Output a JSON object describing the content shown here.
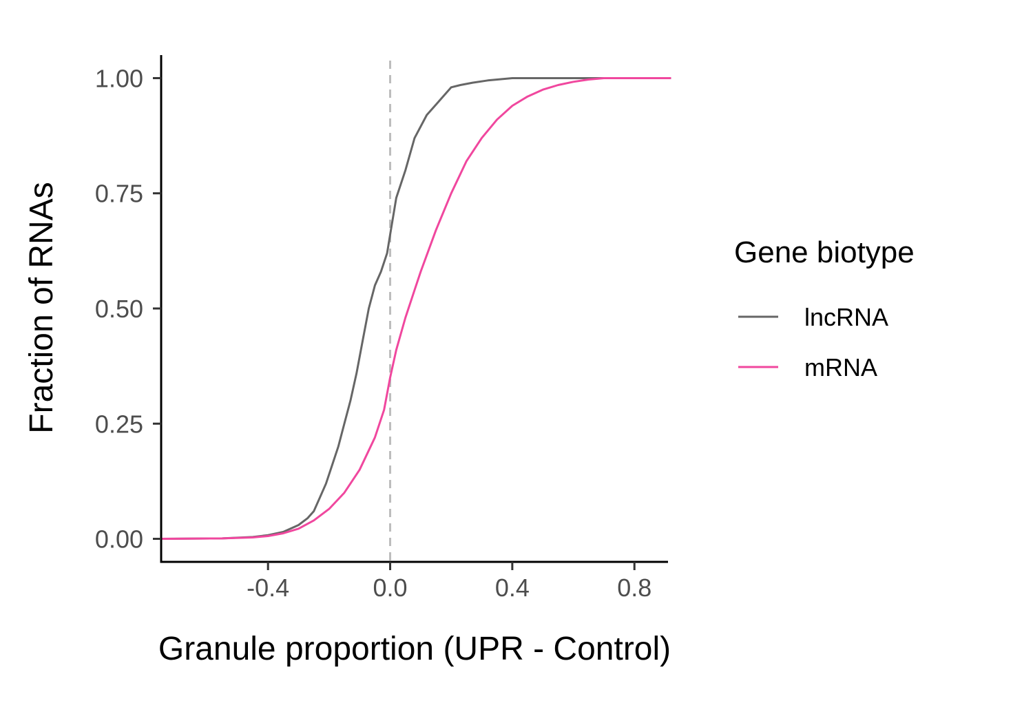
{
  "chart_data": {
    "type": "line",
    "subtype": "ecdf",
    "xlabel": "Granule proportion (UPR - Control)",
    "ylabel": "Fraction of RNAs",
    "xlim": [
      -0.75,
      0.91
    ],
    "ylim": [
      -0.05,
      1.05
    ],
    "x_ticks": [
      -0.4,
      0.0,
      0.4,
      0.8
    ],
    "x_tick_labels": [
      "-0.4",
      "0.0",
      "0.4",
      "0.8"
    ],
    "y_ticks": [
      0,
      0.25,
      0.5,
      0.75,
      1.0
    ],
    "y_tick_labels": [
      "0.00",
      "0.25",
      "0.50",
      "0.75",
      "1.00"
    ],
    "reference_line": {
      "axis": "x",
      "value": 0.0,
      "style": "dashed",
      "color": "#bdbdbd"
    },
    "grid": false,
    "legend": {
      "title": "Gene biotype",
      "position": "right"
    },
    "series": [
      {
        "name": "lncRNA",
        "color": "#666666",
        "x": [
          -0.75,
          -0.55,
          -0.45,
          -0.4,
          -0.35,
          -0.3,
          -0.27,
          -0.25,
          -0.23,
          -0.21,
          -0.19,
          -0.17,
          -0.15,
          -0.13,
          -0.11,
          -0.09,
          -0.07,
          -0.05,
          -0.03,
          -0.01,
          0.0,
          0.02,
          0.05,
          0.08,
          0.12,
          0.16,
          0.2,
          0.23,
          0.27,
          0.32,
          0.4,
          0.92
        ],
        "y": [
          0.0,
          0.001,
          0.004,
          0.008,
          0.015,
          0.03,
          0.045,
          0.06,
          0.09,
          0.12,
          0.16,
          0.2,
          0.25,
          0.3,
          0.36,
          0.43,
          0.5,
          0.55,
          0.58,
          0.62,
          0.66,
          0.74,
          0.8,
          0.87,
          0.92,
          0.95,
          0.98,
          0.985,
          0.99,
          0.995,
          1.0,
          1.0
        ]
      },
      {
        "name": "mRNA",
        "color": "#f0479e",
        "x": [
          -0.75,
          -0.55,
          -0.45,
          -0.4,
          -0.35,
          -0.3,
          -0.25,
          -0.2,
          -0.15,
          -0.1,
          -0.05,
          -0.02,
          0.0,
          0.02,
          0.05,
          0.08,
          0.1,
          0.15,
          0.2,
          0.25,
          0.3,
          0.35,
          0.4,
          0.45,
          0.5,
          0.55,
          0.6,
          0.65,
          0.7,
          0.92
        ],
        "y": [
          0.0,
          0.001,
          0.003,
          0.006,
          0.012,
          0.022,
          0.04,
          0.065,
          0.1,
          0.15,
          0.22,
          0.28,
          0.35,
          0.41,
          0.48,
          0.54,
          0.58,
          0.67,
          0.75,
          0.82,
          0.87,
          0.91,
          0.94,
          0.96,
          0.975,
          0.985,
          0.992,
          0.997,
          1.0,
          1.0
        ]
      }
    ]
  }
}
